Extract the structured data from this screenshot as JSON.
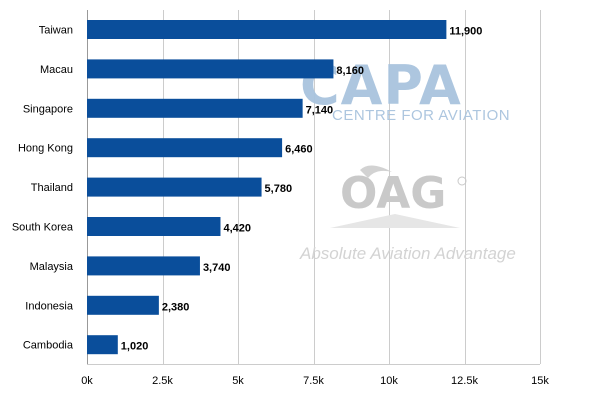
{
  "watermarks": {
    "capa": {
      "logo": "CAPA",
      "tagline": "CENTRE FOR AVIATION",
      "color": "#a9c4de"
    },
    "oag": {
      "logo": "OAG",
      "tagline": "Absolute Aviation Advantage",
      "color": "#c9c9c9"
    }
  },
  "chart_data": {
    "type": "bar",
    "orientation": "horizontal",
    "title": "",
    "xlabel": "",
    "ylabel": "",
    "categories": [
      "Taiwan",
      "Macau",
      "Singapore",
      "Hong Kong",
      "Thailand",
      "South Korea",
      "Malaysia",
      "Indonesia",
      "Cambodia"
    ],
    "values": [
      11900,
      8160,
      7140,
      6460,
      5780,
      4420,
      3740,
      2380,
      1020
    ],
    "value_labels": [
      "11,900",
      "8,160",
      "7,140",
      "6,460",
      "5,780",
      "4,420",
      "3,740",
      "2,380",
      "1,020"
    ],
    "xlim": [
      0,
      15000
    ],
    "x_ticks": [
      0,
      2500,
      5000,
      7500,
      10000,
      12500,
      15000
    ],
    "x_tick_labels": [
      "0k",
      "2.5k",
      "5k",
      "7.5k",
      "10k",
      "12.5k",
      "15k"
    ],
    "bar_color": "#0a4e9b",
    "grid": "vertical",
    "legend": "none"
  }
}
